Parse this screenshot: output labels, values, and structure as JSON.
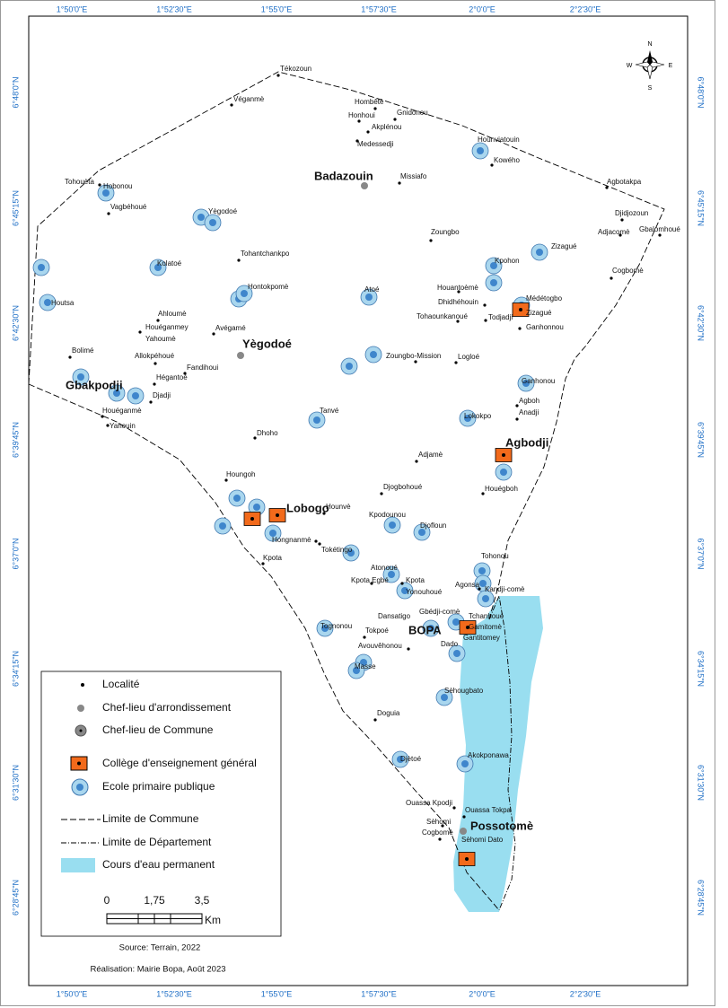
{
  "graticule": {
    "longitude": [
      "1°50'0\"E",
      "1°52'30\"E",
      "1°55'0\"E",
      "1°57'30\"E",
      "2°0'0\"E",
      "2°2'30\"E"
    ],
    "latitude": [
      "6°48'0\"N",
      "6°45'15\"N",
      "6°42'30\"N",
      "6°39'45\"N",
      "6°37'0\"N",
      "6°34'15\"N",
      "6°31'30\"N",
      "6°28'45\"N"
    ]
  },
  "localities": [
    "Tékozoun",
    "Véganmè",
    "Hombêtè",
    "Honhoui",
    "Gnidonou",
    "Akplénou",
    "Medessedji",
    "Hounviatouin",
    "Kowého",
    "Tohouèta",
    "Hobonou",
    "Vagbéhoué",
    "Missiafo",
    "Agbotakpa",
    "Djidjozoun",
    "Adjacomè",
    "Gbalomhoué",
    "Yègodoé",
    "Zoungbo",
    "Zizagué",
    "Tohantchankpo",
    "Kpohon",
    "Cogbomè",
    "Kolatoé",
    "Hontokpomè",
    "Atoé",
    "Houantoèmè",
    "Dhidhéhouin",
    "Médétogbo",
    "Houtsa",
    "Ahloumè",
    "Zizagué",
    "Tohaounkanoué",
    "Todjadji",
    "Ganhonnou",
    "Houéganmey",
    "Yahoumè",
    "Avégamé",
    "Bolimé",
    "Allokpéhoué",
    "Zoungbo-Mission",
    "Logloé",
    "Fandihoui",
    "Hégantoé",
    "Ganhonou",
    "Djadji",
    "Agboh",
    "Houéganmè",
    "Anadji",
    "Yahouin",
    "Tanvé",
    "Lokokpo",
    "Dhoho",
    "Adjamè",
    "Houngoh",
    "Djogbohoué",
    "Houégboh",
    "Hounvè",
    "Kpodounou",
    "Djofloun",
    "Hongnanmè",
    "Tokétingo",
    "Tohonou",
    "Kpota",
    "Atonoué",
    "Kpota Egbé",
    "Kpota",
    "Yonouhoué",
    "Agonsa",
    "Kandji-comè",
    "Dansatigo",
    "Gbédji-comè",
    "Tchanhoué",
    "Gamitomè",
    "Gantitomey",
    "Tokpoé",
    "Dado",
    "Tognonou",
    "Avouvêhonou",
    "Masse",
    "Sèhougbato",
    "Doguia",
    "Djètoé",
    "Akokponawa",
    "Ouassa Kpodji",
    "Ouassa Tokpa",
    "Sèhomi",
    "Cogbomè",
    "Sèhomi Dato"
  ],
  "chefs_lieux": [
    "Badazouin",
    "Yègodoé",
    "Gbakpodji",
    "Lobogo",
    "Agbodji",
    "BOPA",
    "Possotomè"
  ],
  "compass": {
    "n": "N",
    "e": "E",
    "s": "S",
    "w": "W"
  },
  "legend": {
    "items": [
      "Localité",
      "Chef-lieu d'arrondissement",
      "Chef-lieu de Commune",
      "Collège d'enseignement général",
      "Ecole primaire publique",
      "Limite de Commune",
      "Limite de Département",
      "Cours d'eau permanent"
    ],
    "scale": {
      "ticks": [
        "0",
        "1,75",
        "3,5"
      ],
      "unit": "Km"
    }
  },
  "credits": {
    "source": "Source: Terrain, 2022",
    "realisation": "Réalisation: Mairie Bopa,  Août 2023"
  }
}
